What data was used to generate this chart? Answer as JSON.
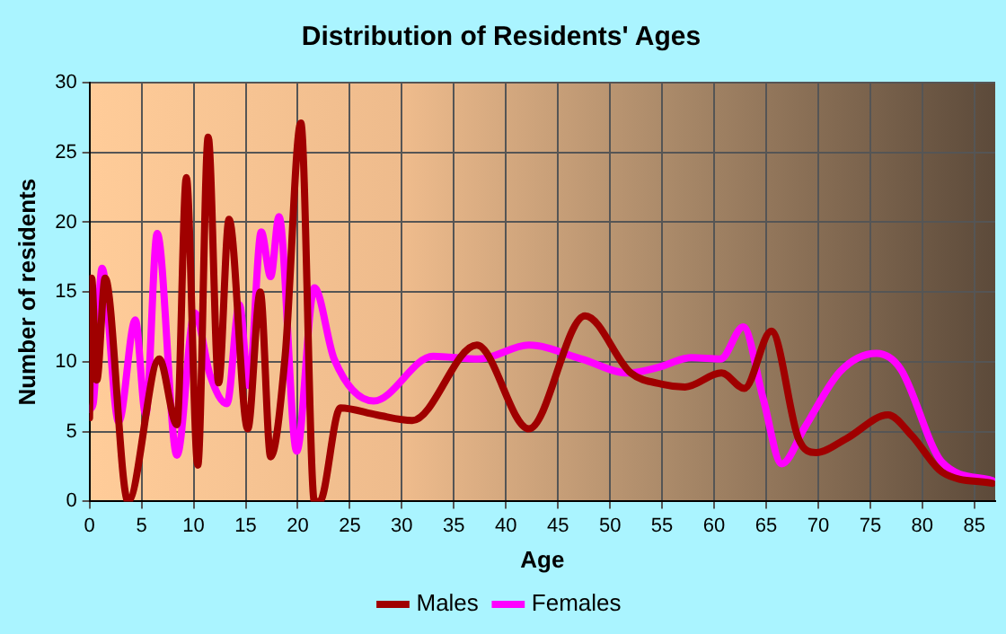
{
  "chart_data": {
    "type": "line",
    "title": "Distribution of Residents' Ages",
    "xlabel": "Age",
    "ylabel": "Number of residents",
    "xlim": [
      0,
      87
    ],
    "xticks": [
      0,
      5,
      10,
      15,
      20,
      25,
      30,
      35,
      40,
      45,
      50,
      55,
      60,
      65,
      70,
      75,
      80,
      85
    ],
    "ylim": [
      0,
      30
    ],
    "yticks": [
      0,
      5,
      10,
      15,
      20,
      25,
      30
    ],
    "grid": true,
    "legend": "bottom",
    "marker": "none",
    "line_style": "solid",
    "series": [
      {
        "name": "Males",
        "color": "#a00000",
        "x": [
          0,
          0.2,
          0.7,
          1.5,
          3.7,
          6.7,
          8.4,
          9.3,
          10.4,
          11.4,
          12.4,
          13.4,
          15.2,
          16.4,
          17.4,
          18.8,
          20.3,
          21.6,
          22.1,
          24.1,
          27.6,
          31,
          37.2,
          42.2,
          47.6,
          52,
          55,
          57.2,
          60.7,
          62.9,
          65.5,
          68.1,
          69.8,
          72.7,
          76.7,
          79,
          81.9,
          86.7
        ],
        "values": [
          6,
          16,
          8.7,
          16,
          0,
          10.2,
          5.5,
          23.2,
          2.6,
          26.1,
          8.5,
          20.2,
          5.2,
          15,
          3.2,
          10.5,
          27.1,
          0,
          0,
          6.7,
          6.2,
          5.8,
          11.2,
          5.2,
          13.3,
          9.2,
          8.4,
          8.2,
          9.2,
          8.1,
          12.2,
          4.5,
          3.5,
          4.5,
          6.2,
          4.7,
          2.1,
          1.3
        ]
      },
      {
        "name": "Females",
        "color": "#ff00ff",
        "x": [
          0,
          0.35,
          1.2,
          2.8,
          4.4,
          5.4,
          6.5,
          8.4,
          10.1,
          11.6,
          13.2,
          14.4,
          15.3,
          16.5,
          17.4,
          18.2,
          19.9,
          21.6,
          23.5,
          27.3,
          33,
          37.4,
          42.2,
          47.3,
          51.7,
          54.6,
          57.8,
          60.6,
          62.8,
          64.7,
          66.5,
          68.7,
          72.1,
          75.6,
          77.9,
          81.9,
          86.7
        ],
        "values": [
          6.6,
          7,
          16.7,
          5.7,
          13,
          6.2,
          19.2,
          3.3,
          13.5,
          9,
          7,
          14.1,
          8.3,
          19.3,
          16.1,
          20.4,
          3.6,
          15.3,
          10.2,
          7.2,
          10.4,
          10.2,
          11.2,
          10.2,
          9.2,
          9.6,
          10.3,
          10.2,
          12.5,
          7.4,
          2.7,
          5.3,
          9.3,
          10.6,
          9.5,
          2.8,
          1.5
        ]
      }
    ]
  }
}
